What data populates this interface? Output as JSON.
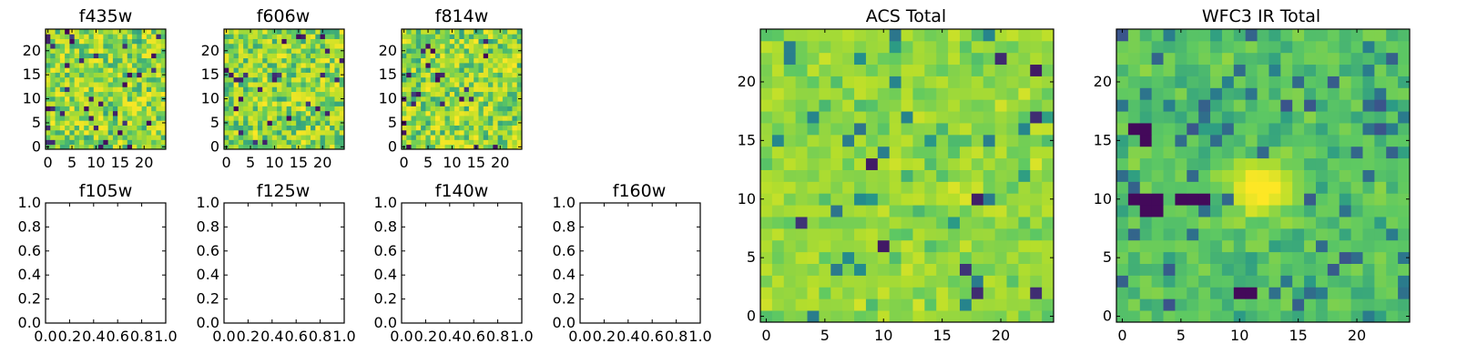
{
  "figure": {
    "colormap": [
      "#440154",
      "#3b528b",
      "#21918c",
      "#5ec962",
      "#b5de2b",
      "#fde725"
    ]
  },
  "chart_data": [
    {
      "id": "f435w",
      "type": "heatmap",
      "title": "f435w",
      "grid_size": 25,
      "seed": 11,
      "mode": "noise",
      "dark_frac": 0.05,
      "xticks": [
        0,
        5,
        10,
        15,
        20
      ],
      "yticks": [
        0,
        5,
        10,
        15,
        20
      ],
      "xlim": [
        -0.5,
        24.5
      ],
      "ylim": [
        -0.5,
        24.5
      ]
    },
    {
      "id": "f606w",
      "type": "heatmap",
      "title": "f606w",
      "grid_size": 25,
      "seed": 23,
      "mode": "noise",
      "dark_frac": 0.04,
      "xticks": [
        0,
        5,
        10,
        15,
        20
      ],
      "yticks": [
        0,
        5,
        10,
        15,
        20
      ],
      "xlim": [
        -0.5,
        24.5
      ],
      "ylim": [
        -0.5,
        24.5
      ]
    },
    {
      "id": "f814w",
      "type": "heatmap",
      "title": "f814w",
      "grid_size": 25,
      "seed": 37,
      "mode": "noise",
      "dark_frac": 0.04,
      "xticks": [
        0,
        5,
        10,
        15,
        20
      ],
      "yticks": [
        0,
        5,
        10,
        15,
        20
      ],
      "xlim": [
        -0.5,
        24.5
      ],
      "ylim": [
        -0.5,
        24.5
      ]
    },
    {
      "id": "f105w",
      "type": "empty",
      "title": "f105w",
      "xticks": [
        "0.0",
        "0.2",
        "0.4",
        "0.6",
        "0.8",
        "1.0"
      ],
      "yticks": [
        "0.0",
        "0.2",
        "0.4",
        "0.6",
        "0.8",
        "1.0"
      ],
      "xlim": [
        0,
        1
      ],
      "ylim": [
        0,
        1
      ]
    },
    {
      "id": "f125w",
      "type": "empty",
      "title": "f125w",
      "xticks": [
        "0.0",
        "0.2",
        "0.4",
        "0.6",
        "0.8",
        "1.0"
      ],
      "yticks": [
        "0.0",
        "0.2",
        "0.4",
        "0.6",
        "0.8",
        "1.0"
      ],
      "xlim": [
        0,
        1
      ],
      "ylim": [
        0,
        1
      ]
    },
    {
      "id": "f140w",
      "type": "empty",
      "title": "f140w",
      "xticks": [
        "0.0",
        "0.2",
        "0.4",
        "0.6",
        "0.8",
        "1.0"
      ],
      "yticks": [
        "0.0",
        "0.2",
        "0.4",
        "0.6",
        "0.8",
        "1.0"
      ],
      "xlim": [
        0,
        1
      ],
      "ylim": [
        0,
        1
      ]
    },
    {
      "id": "f160w",
      "type": "empty",
      "title": "f160w",
      "xticks": [
        "0.0",
        "0.2",
        "0.4",
        "0.6",
        "0.8",
        "1.0"
      ],
      "yticks": [
        "0.0",
        "0.2",
        "0.4",
        "0.6",
        "0.8",
        "1.0"
      ],
      "xlim": [
        0,
        1
      ],
      "ylim": [
        0,
        1
      ]
    },
    {
      "id": "acs_total",
      "type": "heatmap",
      "title": "ACS Total",
      "grid_size": 25,
      "seed": 53,
      "mode": "acs",
      "dark_frac": 0.02,
      "xticks": [
        0,
        5,
        10,
        15,
        20
      ],
      "yticks": [
        0,
        5,
        10,
        15,
        20
      ],
      "xlim": [
        -0.5,
        24.5
      ],
      "ylim": [
        -0.5,
        24.5
      ]
    },
    {
      "id": "wfc3_ir_total",
      "type": "heatmap",
      "title": "WFC3 IR Total",
      "grid_size": 25,
      "seed": 71,
      "mode": "ir",
      "dark_frac": 0.0,
      "source_center": [
        12,
        11
      ],
      "xticks": [
        0,
        5,
        10,
        15,
        20
      ],
      "yticks": [
        0,
        5,
        10,
        15,
        20
      ],
      "xlim": [
        -0.5,
        24.5
      ],
      "ylim": [
        -0.5,
        24.5
      ]
    }
  ]
}
